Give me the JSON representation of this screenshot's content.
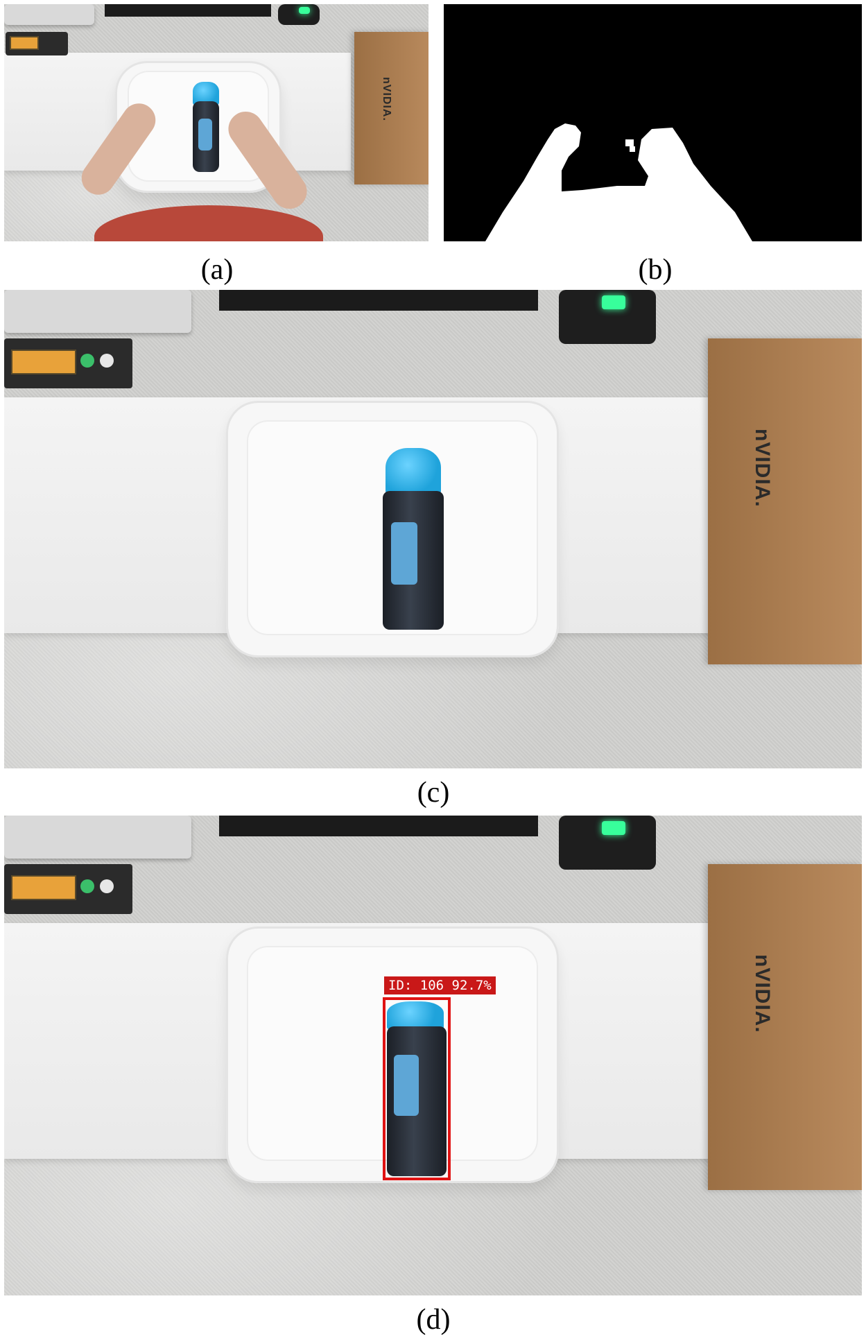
{
  "captions": {
    "a": "(a)",
    "b": "(b)",
    "c": "(c)",
    "d": "(d)"
  },
  "box_logo_text": "nVIDIA.",
  "detection": {
    "label": "ID: 106 92.7%",
    "color": "#e01313"
  },
  "colors": {
    "mask_background": "#000000",
    "mask_foreground": "#ffffff",
    "bottle_cap": "#1fa3db",
    "box": "#b98a5d"
  }
}
